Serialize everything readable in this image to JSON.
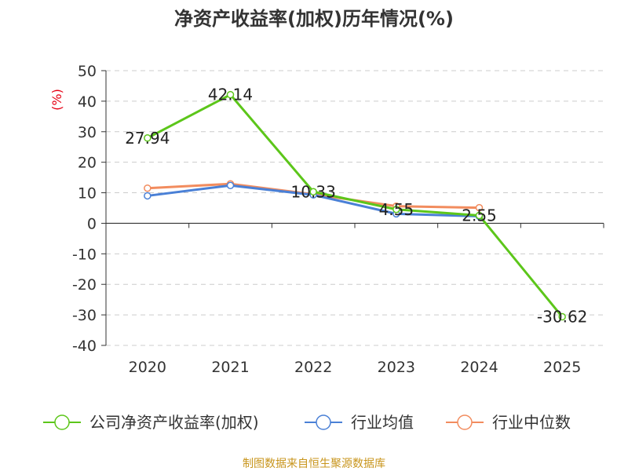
{
  "colors": {
    "company": "#5cc61a",
    "industry_avg": "#4a80d6",
    "industry_median": "#f28c5e",
    "source": "#c8951c",
    "ylabel": "#e60012"
  },
  "chart_data": {
    "type": "line",
    "title": "净资产收益率(加权)历年情况(%)",
    "ylabel": "(%)",
    "xlabel": "",
    "categories": [
      "2020",
      "2021",
      "2022",
      "2023",
      "2024",
      "2025"
    ],
    "ylim": [
      -40,
      50
    ],
    "yticks": [
      50,
      40,
      30,
      20,
      10,
      0,
      -10,
      -20,
      -30,
      -40
    ],
    "grid": true,
    "legend_position": "bottom",
    "series": [
      {
        "key": "company",
        "name": "公司净资产收益率(加权)",
        "values": [
          27.94,
          42.14,
          10.33,
          4.55,
          2.55,
          -30.62
        ],
        "labels": [
          "27.94",
          "42.14",
          "10.33",
          "4.55",
          "2.55",
          "-30.62"
        ]
      },
      {
        "key": "industry_avg",
        "name": "行业均值",
        "values": [
          9.0,
          12.4,
          9.3,
          3.1,
          2.3,
          null
        ]
      },
      {
        "key": "industry_median",
        "name": "行业中位数",
        "values": [
          11.5,
          12.9,
          9.5,
          5.6,
          5.1,
          null
        ]
      }
    ]
  },
  "source_text": "制图数据来自恒生聚源数据库"
}
